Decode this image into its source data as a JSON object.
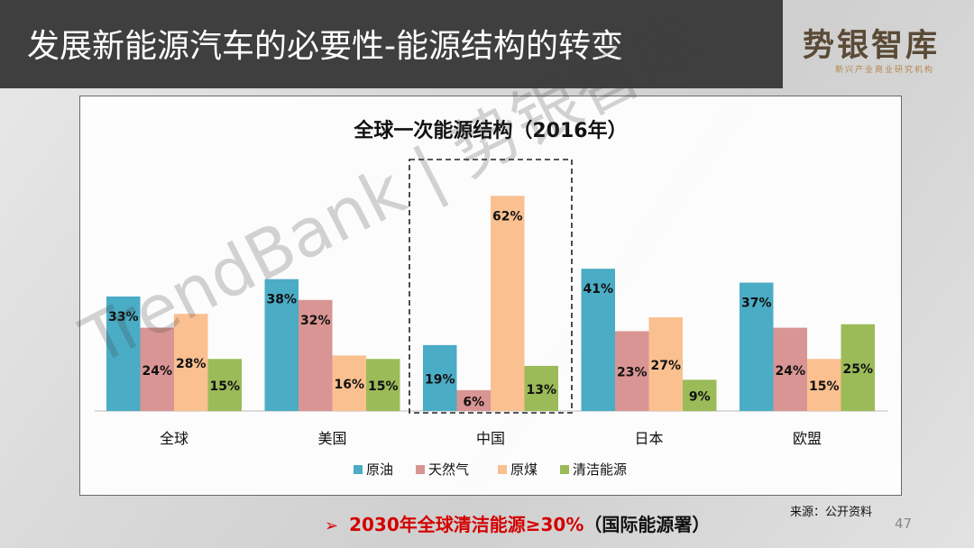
{
  "header": {
    "title": "发展新能源汽车的必要性-能源结构的转变",
    "logo_text": "势银智库",
    "logo_subtitle": "新兴产业商业研究机构"
  },
  "watermark": "TrendBank | 势银智库",
  "source": "来源：公开资料",
  "footnote": {
    "arrow": "➢",
    "main": "2030年全球清洁能源≥30%",
    "paren": "（国际能源署）"
  },
  "page_number": "47",
  "colors": {
    "oil": "#4bacc6",
    "gas": "#d99593",
    "coal": "#fac090",
    "clean": "#9bbb59"
  },
  "chart_data": {
    "type": "bar",
    "title": "全球一次能源结构（2016年）",
    "categories": [
      "全球",
      "美国",
      "中国",
      "日本",
      "欧盟"
    ],
    "highlighted_category": "中国",
    "series": [
      {
        "name": "原油",
        "values": [
          33,
          38,
          19,
          41,
          37
        ]
      },
      {
        "name": "天然气",
        "values": [
          24,
          32,
          6,
          23,
          24
        ]
      },
      {
        "name": "原煤",
        "values": [
          28,
          16,
          62,
          27,
          15
        ]
      },
      {
        "name": "清洁能源",
        "values": [
          15,
          15,
          13,
          9,
          25
        ]
      }
    ],
    "value_suffix": "%",
    "ylim": [
      0,
      62
    ],
    "legend_position": "bottom",
    "grid": false
  }
}
